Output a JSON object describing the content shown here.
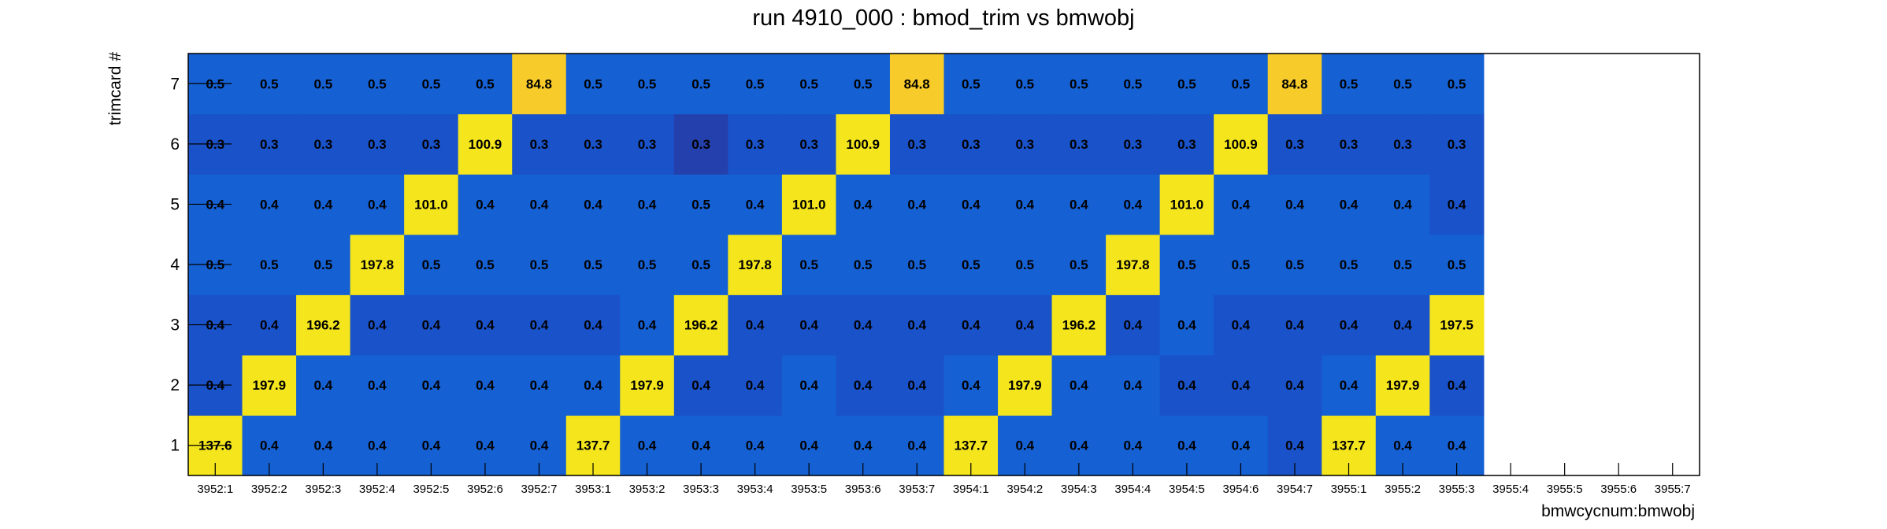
{
  "chart_data": {
    "type": "heatmap",
    "title": "run 4910_000 : bmod_trim vs bmwobj",
    "xlabel": "bmwcycnum:bmwobj",
    "ylabel": "trimcard #",
    "x_categories": [
      "3952:1",
      "3952:2",
      "3952:3",
      "3952:4",
      "3952:5",
      "3952:6",
      "3952:7",
      "3953:1",
      "3953:2",
      "3953:3",
      "3953:4",
      "3953:5",
      "3953:6",
      "3953:7",
      "3954:1",
      "3954:2",
      "3954:3",
      "3954:4",
      "3954:5",
      "3954:6",
      "3954:7",
      "3955:1",
      "3955:2",
      "3955:3",
      "3955:4",
      "3955:5",
      "3955:6",
      "3955:7"
    ],
    "y_categories": [
      "1",
      "2",
      "3",
      "4",
      "5",
      "6",
      "7"
    ],
    "values": [
      [
        137.6,
        0.4,
        0.4,
        0.4,
        0.4,
        0.4,
        0.4,
        137.7,
        0.4,
        0.4,
        0.4,
        0.4,
        0.4,
        0.4,
        137.7,
        0.4,
        0.4,
        0.4,
        0.4,
        0.4,
        0.4,
        137.7,
        0.4,
        0.4,
        null,
        null,
        null,
        null
      ],
      [
        0.4,
        197.9,
        0.4,
        0.4,
        0.4,
        0.4,
        0.4,
        0.4,
        197.9,
        0.4,
        0.4,
        0.4,
        0.4,
        0.4,
        0.4,
        197.9,
        0.4,
        0.4,
        0.4,
        0.4,
        0.4,
        0.4,
        197.9,
        0.4,
        null,
        null,
        null,
        null
      ],
      [
        0.4,
        0.4,
        196.2,
        0.4,
        0.4,
        0.4,
        0.4,
        0.4,
        0.4,
        196.2,
        0.4,
        0.4,
        0.4,
        0.4,
        0.4,
        0.4,
        196.2,
        0.4,
        0.4,
        0.4,
        0.4,
        0.4,
        0.4,
        197.5,
        null,
        null,
        null,
        null
      ],
      [
        0.5,
        0.5,
        0.5,
        197.8,
        0.5,
        0.5,
        0.5,
        0.5,
        0.5,
        0.5,
        197.8,
        0.5,
        0.5,
        0.5,
        0.5,
        0.5,
        0.5,
        197.8,
        0.5,
        0.5,
        0.5,
        0.5,
        0.5,
        0.5,
        null,
        null,
        null,
        null
      ],
      [
        0.4,
        0.4,
        0.4,
        0.4,
        101.0,
        0.4,
        0.4,
        0.4,
        0.4,
        0.5,
        0.4,
        101.0,
        0.4,
        0.4,
        0.4,
        0.4,
        0.4,
        0.4,
        101.0,
        0.4,
        0.4,
        0.4,
        0.4,
        0.4,
        null,
        null,
        null,
        null
      ],
      [
        0.3,
        0.3,
        0.3,
        0.3,
        0.3,
        100.9,
        0.3,
        0.3,
        0.3,
        0.3,
        0.3,
        0.3,
        100.9,
        0.3,
        0.3,
        0.3,
        0.3,
        0.3,
        0.3,
        100.9,
        0.3,
        0.3,
        0.3,
        0.3,
        null,
        null,
        null,
        null
      ],
      [
        0.5,
        0.5,
        0.5,
        0.5,
        0.5,
        0.5,
        84.8,
        0.5,
        0.5,
        0.5,
        0.5,
        0.5,
        0.5,
        84.8,
        0.5,
        0.5,
        0.5,
        0.5,
        0.5,
        0.5,
        84.8,
        0.5,
        0.5,
        0.5,
        null,
        null,
        null,
        null
      ]
    ],
    "cell_colors": [
      [
        "#f4e51c",
        "#1560d3",
        "#1560d3",
        "#1560d3",
        "#1560d3",
        "#1560d3",
        "#1560d3",
        "#f4e51c",
        "#1560d3",
        "#1560d3",
        "#1560d3",
        "#1560d3",
        "#1560d3",
        "#1560d3",
        "#f4e51c",
        "#1560d3",
        "#1560d3",
        "#1560d3",
        "#1560d3",
        "#1560d3",
        "#1a52c9",
        "#f4e51c",
        "#1560d3",
        "#1560d3"
      ],
      [
        "#1a52c9",
        "#f4e51c",
        "#1560d3",
        "#1560d3",
        "#1560d3",
        "#1560d3",
        "#1560d3",
        "#1560d3",
        "#f4e51c",
        "#1a52c9",
        "#1a52c9",
        "#1560d3",
        "#1a52c9",
        "#1a52c9",
        "#1560d3",
        "#f4e51c",
        "#1560d3",
        "#1560d3",
        "#1a52c9",
        "#1a52c9",
        "#1a52c9",
        "#1560d3",
        "#f4e51c",
        "#1a52c9"
      ],
      [
        "#1a52c9",
        "#1a52c9",
        "#f4e51c",
        "#1a52c9",
        "#1a52c9",
        "#1a52c9",
        "#1a52c9",
        "#1a52c9",
        "#1560d3",
        "#f4e51c",
        "#1a52c9",
        "#1a52c9",
        "#1a52c9",
        "#1a52c9",
        "#1a52c9",
        "#1a52c9",
        "#f4e51c",
        "#1a52c9",
        "#1560d3",
        "#1a52c9",
        "#1a52c9",
        "#1a52c9",
        "#1a52c9",
        "#f4e51c"
      ],
      [
        "#1560d3",
        "#1560d3",
        "#1560d3",
        "#f4e51c",
        "#1560d3",
        "#1560d3",
        "#1560d3",
        "#1560d3",
        "#1560d3",
        "#1560d3",
        "#f4e51c",
        "#1560d3",
        "#1560d3",
        "#1560d3",
        "#1560d3",
        "#1560d3",
        "#1560d3",
        "#f4e51c",
        "#1560d3",
        "#1560d3",
        "#1560d3",
        "#1560d3",
        "#1560d3",
        "#1560d3"
      ],
      [
        "#1560d3",
        "#1560d3",
        "#1560d3",
        "#1560d3",
        "#f4e51c",
        "#1560d3",
        "#1560d3",
        "#1560d3",
        "#1560d3",
        "#1560d3",
        "#1560d3",
        "#f4e51c",
        "#1560d3",
        "#1560d3",
        "#1560d3",
        "#1560d3",
        "#1560d3",
        "#1560d3",
        "#f4e51c",
        "#1560d3",
        "#1560d3",
        "#1560d3",
        "#1560d3",
        "#1a52c9"
      ],
      [
        "#1a52c9",
        "#1a52c9",
        "#1a52c9",
        "#1a52c9",
        "#1a52c9",
        "#f4e51c",
        "#1a52c9",
        "#1a52c9",
        "#1a52c9",
        "#2440ac",
        "#1a52c9",
        "#1a52c9",
        "#f4e51c",
        "#1a52c9",
        "#1a52c9",
        "#1a52c9",
        "#1a52c9",
        "#1a52c9",
        "#1a52c9",
        "#f4e51c",
        "#1a52c9",
        "#1a52c9",
        "#1a52c9",
        "#1a52c9"
      ],
      [
        "#1560d3",
        "#1560d3",
        "#1560d3",
        "#1560d3",
        "#1560d3",
        "#1560d3",
        "#f6cb2a",
        "#1560d3",
        "#1560d3",
        "#1560d3",
        "#1560d3",
        "#1560d3",
        "#1560d3",
        "#f6cb2a",
        "#1560d3",
        "#1560d3",
        "#1560d3",
        "#1560d3",
        "#1560d3",
        "#1560d3",
        "#f6cb2a",
        "#1560d3",
        "#1560d3",
        "#1560d3"
      ]
    ],
    "grid": false,
    "legend": "none"
  }
}
